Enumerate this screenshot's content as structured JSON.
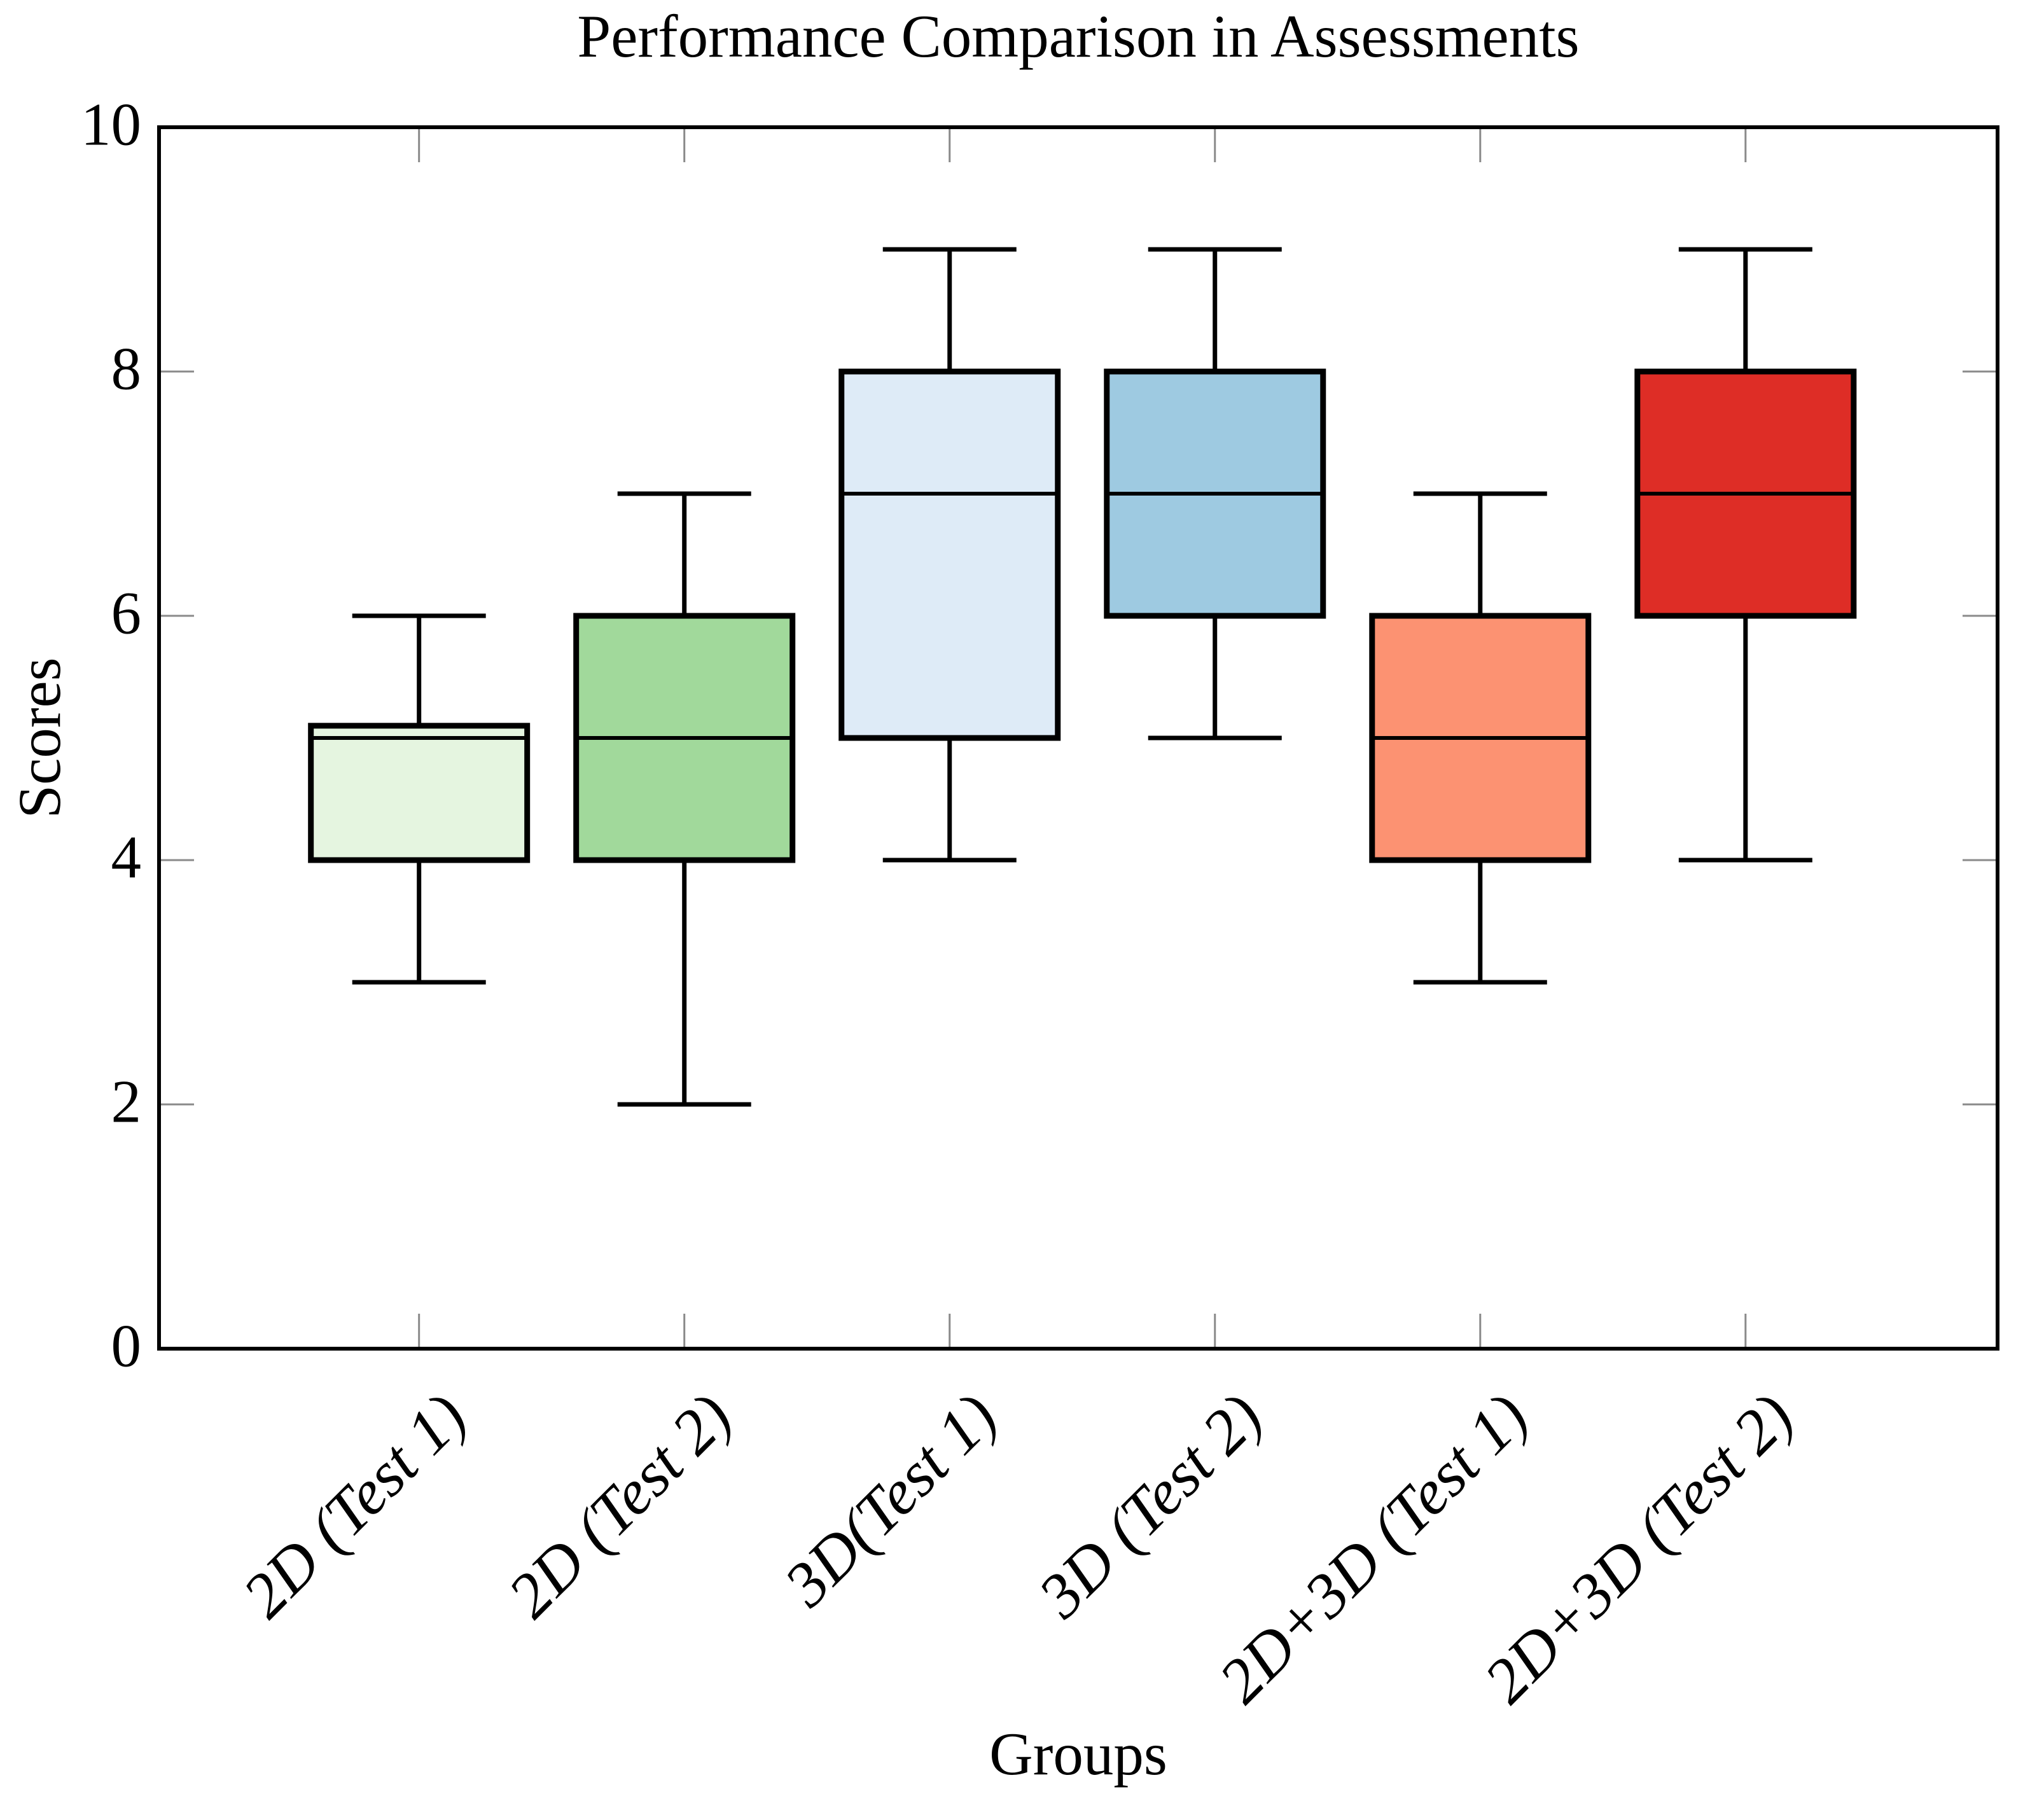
{
  "title": "Performance Comparison in Assessments",
  "chart_data": {
    "type": "box",
    "title": "Performance Comparison in Assessments",
    "xlabel": "Groups",
    "ylabel": "Scores",
    "ylim": [
      0,
      10
    ],
    "yticks": [
      0,
      2,
      4,
      6,
      8,
      10
    ],
    "ytick_labels": [
      "0",
      "2",
      "4",
      "6",
      "8",
      "10"
    ],
    "grid": false,
    "legend_position": "none",
    "categories": [
      "2D (Test 1)",
      "2D (Test 2)",
      "3D(Test 1)",
      "3D (Test 2)",
      "2D+3D (Test 1)",
      "2D+3D (Test 2)"
    ],
    "series": [
      {
        "label": "2D (Test 1)",
        "whisker_low": 3,
        "q1": 4,
        "median": 5,
        "q3": 5.1,
        "whisker_high": 6,
        "fill": "#e5f5e0"
      },
      {
        "label": "2D (Test 2)",
        "whisker_low": 2,
        "q1": 4,
        "median": 5,
        "q3": 6,
        "whisker_high": 7,
        "fill": "#a1d99b"
      },
      {
        "label": "3D(Test 1)",
        "whisker_low": 4,
        "q1": 5,
        "median": 7,
        "q3": 8,
        "whisker_high": 9,
        "fill": "#deebf7"
      },
      {
        "label": "3D (Test 2)",
        "whisker_low": 5,
        "q1": 6,
        "median": 7,
        "q3": 8,
        "whisker_high": 9,
        "fill": "#9ecae1"
      },
      {
        "label": "2D+3D (Test 1)",
        "whisker_low": 3,
        "q1": 4,
        "median": 5,
        "q3": 6,
        "whisker_high": 7,
        "fill": "#fc9272"
      },
      {
        "label": "2D+3D (Test 2)",
        "whisker_low": 4,
        "q1": 6,
        "median": 7,
        "q3": 8,
        "whisker_high": 9,
        "fill": "#de2d26"
      }
    ],
    "colors": {
      "box_edge": "#000000",
      "median_line": "#000000",
      "whisker": "#000000",
      "axis_frame": "#000000",
      "tick_mark": "#8a8a8a",
      "text": "#000000",
      "background": "#ffffff"
    }
  }
}
